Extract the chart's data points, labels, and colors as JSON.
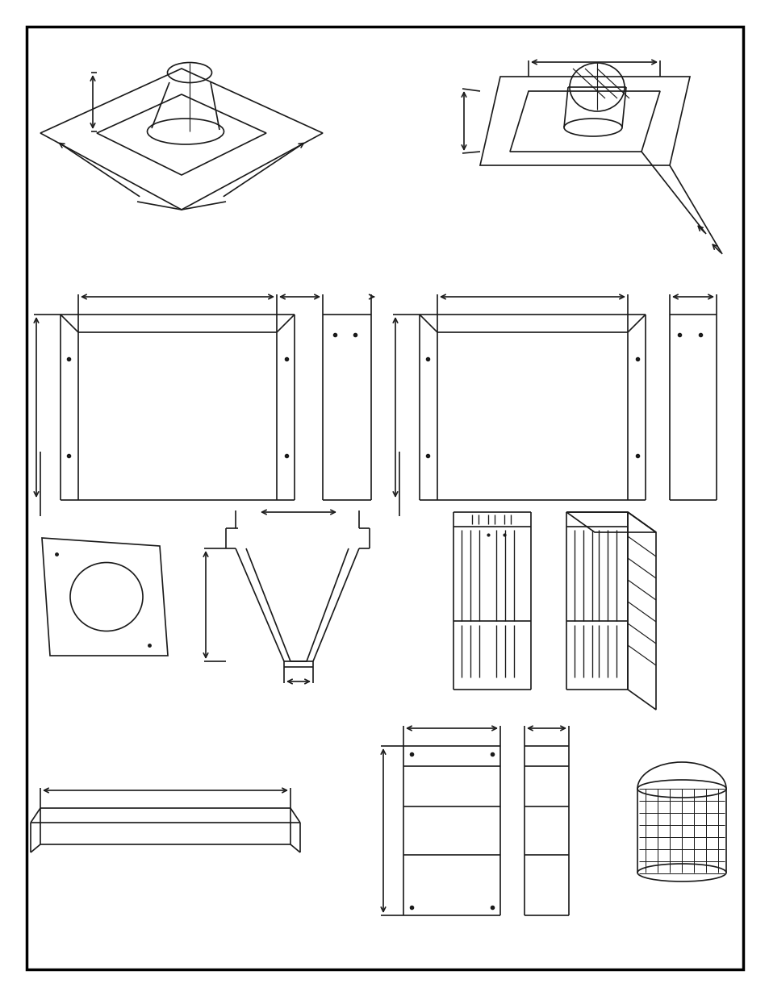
{
  "bg_color": "#ffffff",
  "border_color": "#000000",
  "line_color": "#1a1a1a",
  "page_bg": "#ffffff",
  "lw": 1.2
}
